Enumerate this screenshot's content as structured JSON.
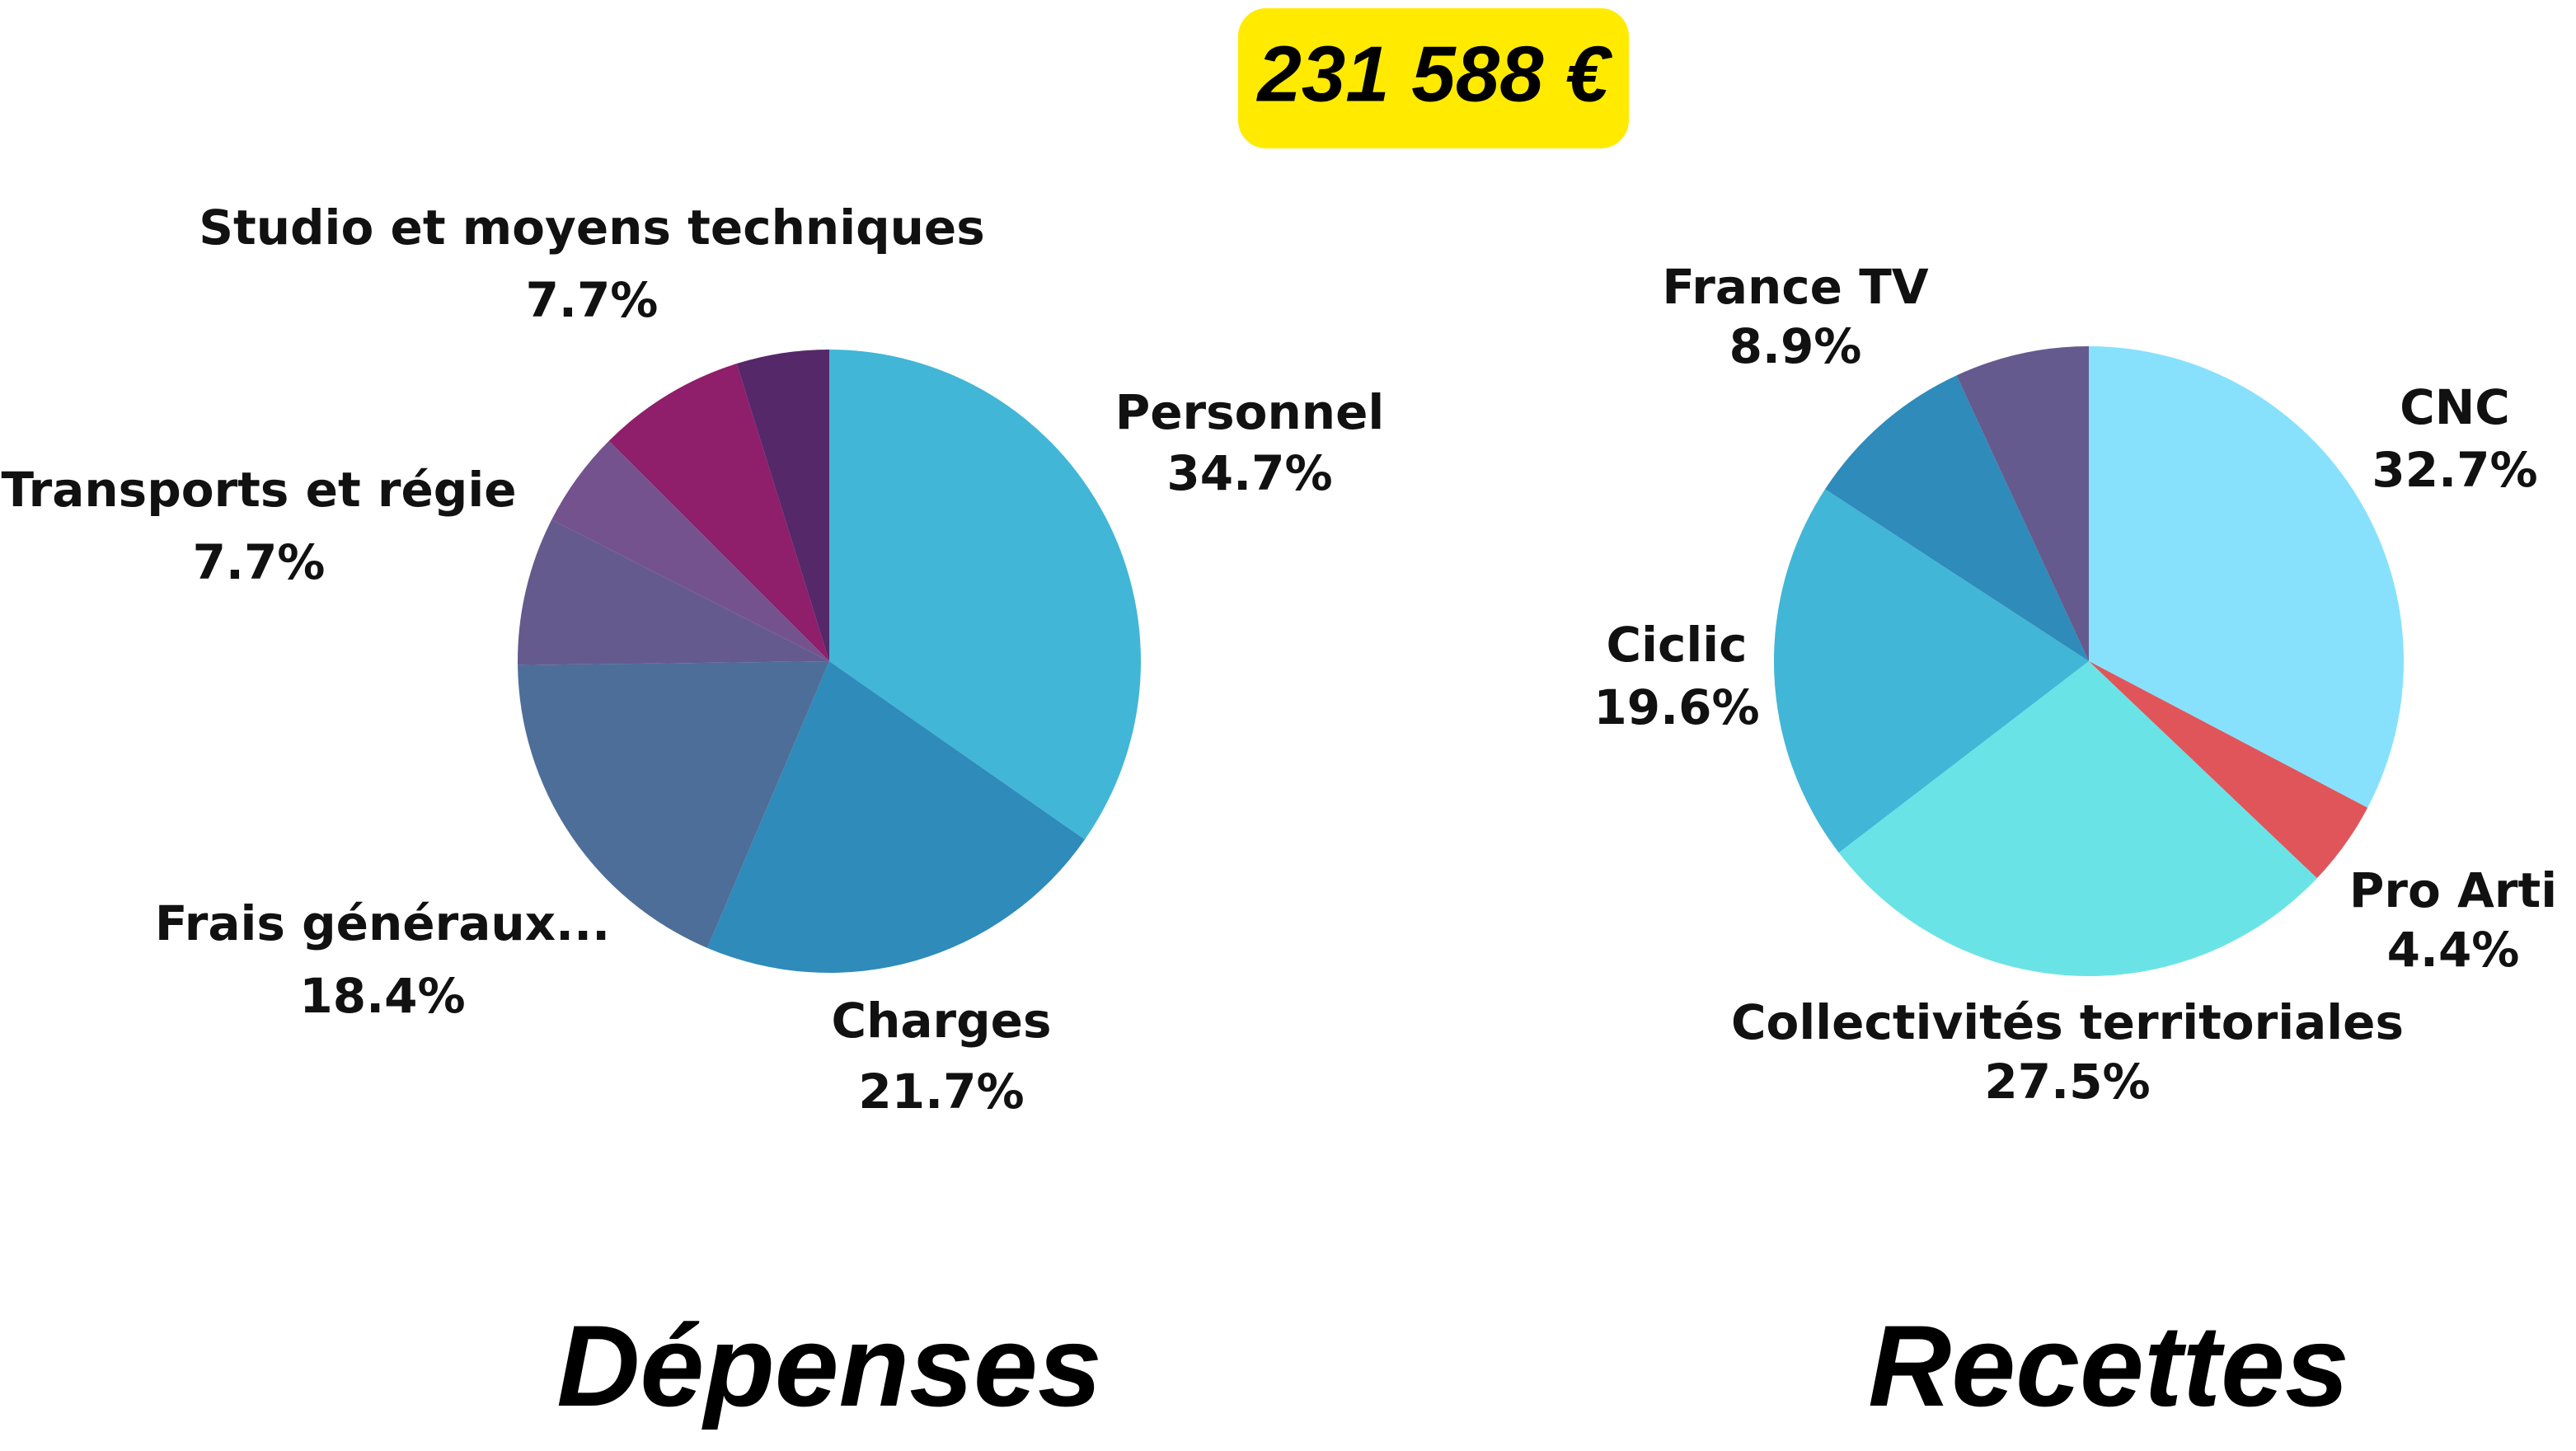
{
  "title": "231 588 €",
  "chart_data": [
    {
      "type": "pie",
      "title": "Dépenses",
      "categories": [
        "Personnel",
        "Charges",
        "Frais généraux...",
        "Transports et régie",
        null,
        "Studio et moyens techniques",
        null
      ],
      "values": [
        34.7,
        21.7,
        18.4,
        7.7,
        5.0,
        7.7,
        4.8
      ],
      "value_labels": [
        "34.7%",
        "21.7%",
        "18.4%",
        "7.7%",
        null,
        "7.7%",
        null
      ],
      "colors": [
        "#42b6d6",
        "#2e8bba",
        "#4d6e98",
        "#645a8e",
        "#74528e",
        "#8f1f6a",
        "#55286a"
      ]
    },
    {
      "type": "pie",
      "title": "Recettes",
      "categories": [
        "CNC",
        "Pro Arti",
        "Collectivités territoriales",
        "Ciclic",
        "France TV",
        null
      ],
      "values": [
        32.7,
        4.4,
        27.5,
        19.6,
        8.9,
        6.9
      ],
      "value_labels": [
        "32.7%",
        "4.4%",
        "27.5%",
        "19.6%",
        "8.9%",
        null
      ],
      "colors": [
        "#87e1fc",
        "#e0555a",
        "#6ae3e6",
        "#42b6d6",
        "#2e8bba",
        "#645a8e"
      ]
    }
  ]
}
